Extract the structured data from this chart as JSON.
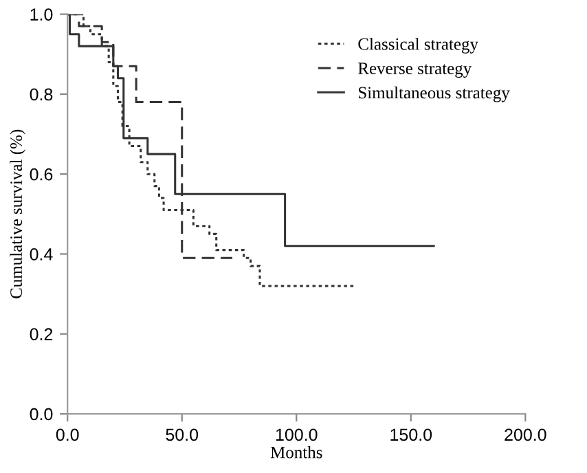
{
  "chart_data": {
    "type": "step",
    "xlabel": "Months",
    "ylabel": "Cumulative survival (%)",
    "xlim": [
      0,
      200
    ],
    "ylim": [
      0,
      1.0
    ],
    "xticks": [
      {
        "value": 0,
        "label": "0.0"
      },
      {
        "value": 50,
        "label": "50.0"
      },
      {
        "value": 100,
        "label": "100.0"
      },
      {
        "value": 150,
        "label": "150.0"
      },
      {
        "value": 200,
        "label": "200.0"
      }
    ],
    "yticks": [
      {
        "value": 0,
        "label": "0.0"
      },
      {
        "value": 0.2,
        "label": "0.2"
      },
      {
        "value": 0.4,
        "label": "0.4"
      },
      {
        "value": 0.6,
        "label": "0.6"
      },
      {
        "value": 0.8,
        "label": "0.8"
      },
      {
        "value": 1.0,
        "label": "1.0"
      }
    ],
    "legend": "top right",
    "grid": false,
    "series": [
      {
        "name": "Classical strategy",
        "color": "#333333",
        "line_style": "dotted",
        "x": [
          0,
          7,
          10,
          15,
          18,
          20,
          22,
          24,
          27,
          32,
          35,
          38,
          40,
          42,
          55,
          62,
          65,
          77,
          80,
          84,
          125
        ],
        "values": [
          1.0,
          0.97,
          0.95,
          0.92,
          0.88,
          0.82,
          0.78,
          0.72,
          0.67,
          0.63,
          0.6,
          0.57,
          0.54,
          0.51,
          0.47,
          0.45,
          0.41,
          0.39,
          0.37,
          0.32,
          0.32
        ]
      },
      {
        "name": "Reverse strategy",
        "color": "#333333",
        "line_style": "dashed",
        "x": [
          0,
          5,
          15,
          20,
          30,
          50,
          72
        ],
        "values": [
          1.0,
          0.97,
          0.93,
          0.87,
          0.78,
          0.39,
          0.39
        ]
      },
      {
        "name": "Simultaneous strategy",
        "color": "#333333",
        "line_style": "solid",
        "x": [
          0,
          1,
          5,
          20,
          22,
          24.5,
          35,
          47,
          95,
          160
        ],
        "values": [
          1.0,
          0.95,
          0.92,
          0.87,
          0.84,
          0.69,
          0.65,
          0.55,
          0.42,
          0.42
        ]
      }
    ]
  }
}
